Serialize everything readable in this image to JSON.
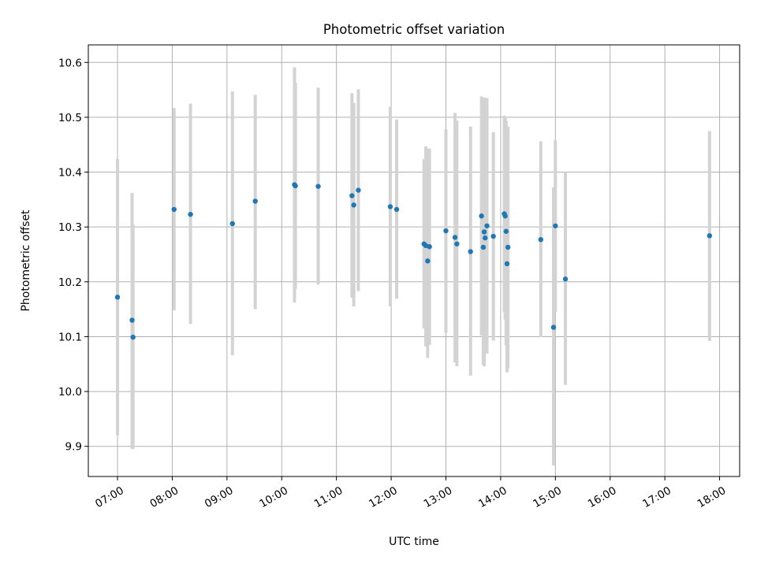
{
  "chart_data": {
    "type": "scatter",
    "title": "Photometric offset variation",
    "xlabel": "UTC time",
    "ylabel": "Photometric offset",
    "x_unit": "UTC time (HH:MM)",
    "xlim": [
      "06:28",
      "18:22"
    ],
    "ylim": [
      9.845,
      10.632
    ],
    "grid": true,
    "x_ticks": [
      "07:00",
      "08:00",
      "09:00",
      "10:00",
      "11:00",
      "12:00",
      "13:00",
      "14:00",
      "15:00",
      "16:00",
      "17:00",
      "18:00"
    ],
    "y_ticks": [
      9.9,
      10.0,
      10.1,
      10.2,
      10.3,
      10.4,
      10.5,
      10.6
    ],
    "y_tick_labels": [
      "9.9",
      "10.0",
      "10.1",
      "10.2",
      "10.3",
      "10.4",
      "10.5",
      "10.6"
    ],
    "point_color": "#1f77b4",
    "errorbar_color": "#d3d3d3",
    "points": [
      {
        "x": "07:00",
        "y": 10.172,
        "lo": 9.92,
        "hi": 10.424
      },
      {
        "x": "07:16",
        "y": 10.13,
        "lo": 9.895,
        "hi": 10.362
      },
      {
        "x": "07:17",
        "y": 10.099,
        "lo": 9.895,
        "hi": 10.305
      },
      {
        "x": "08:02",
        "y": 10.332,
        "lo": 10.148,
        "hi": 10.517
      },
      {
        "x": "08:20",
        "y": 10.323,
        "lo": 10.123,
        "hi": 10.525
      },
      {
        "x": "09:06",
        "y": 10.306,
        "lo": 10.066,
        "hi": 10.547
      },
      {
        "x": "09:31",
        "y": 10.347,
        "lo": 10.15,
        "hi": 10.541
      },
      {
        "x": "10:14",
        "y": 10.377,
        "lo": 10.162,
        "hi": 10.591
      },
      {
        "x": "10:15",
        "y": 10.375,
        "lo": 10.187,
        "hi": 10.563
      },
      {
        "x": "10:40",
        "y": 10.374,
        "lo": 10.195,
        "hi": 10.554
      },
      {
        "x": "11:17",
        "y": 10.357,
        "lo": 10.171,
        "hi": 10.544
      },
      {
        "x": "11:19",
        "y": 10.34,
        "lo": 10.155,
        "hi": 10.526
      },
      {
        "x": "11:24",
        "y": 10.367,
        "lo": 10.183,
        "hi": 10.551
      },
      {
        "x": "11:59",
        "y": 10.337,
        "lo": 10.155,
        "hi": 10.519
      },
      {
        "x": "12:06",
        "y": 10.332,
        "lo": 10.169,
        "hi": 10.496
      },
      {
        "x": "12:36",
        "y": 10.269,
        "lo": 10.115,
        "hi": 10.424
      },
      {
        "x": "12:38",
        "y": 10.266,
        "lo": 10.082,
        "hi": 10.447
      },
      {
        "x": "12:40",
        "y": 10.238,
        "lo": 10.061,
        "hi": 10.443
      },
      {
        "x": "12:42",
        "y": 10.264,
        "lo": 10.085,
        "hi": 10.443
      },
      {
        "x": "13:00",
        "y": 10.293,
        "lo": 10.107,
        "hi": 10.478
      },
      {
        "x": "13:10",
        "y": 10.281,
        "lo": 10.053,
        "hi": 10.508
      },
      {
        "x": "13:12",
        "y": 10.269,
        "lo": 10.046,
        "hi": 10.494
      },
      {
        "x": "13:27",
        "y": 10.255,
        "lo": 10.029,
        "hi": 10.483
      },
      {
        "x": "13:39",
        "y": 10.32,
        "lo": 10.102,
        "hi": 10.538
      },
      {
        "x": "13:41",
        "y": 10.263,
        "lo": 10.049,
        "hi": 10.513
      },
      {
        "x": "13:42",
        "y": 10.291,
        "lo": 10.046,
        "hi": 10.536
      },
      {
        "x": "13:43",
        "y": 10.28,
        "lo": 10.074,
        "hi": 10.498
      },
      {
        "x": "13:45",
        "y": 10.302,
        "lo": 10.069,
        "hi": 10.535
      },
      {
        "x": "13:52",
        "y": 10.283,
        "lo": 10.093,
        "hi": 10.473
      },
      {
        "x": "14:04",
        "y": 10.324,
        "lo": 10.145,
        "hi": 10.503
      },
      {
        "x": "14:05",
        "y": 10.32,
        "lo": 10.131,
        "hi": 10.5
      },
      {
        "x": "14:06",
        "y": 10.292,
        "lo": 10.084,
        "hi": 10.494
      },
      {
        "x": "14:07",
        "y": 10.233,
        "lo": 10.035,
        "hi": 10.481
      },
      {
        "x": "14:08",
        "y": 10.263,
        "lo": 10.043,
        "hi": 10.483
      },
      {
        "x": "14:44",
        "y": 10.277,
        "lo": 10.099,
        "hi": 10.456
      },
      {
        "x": "14:58",
        "y": 10.117,
        "lo": 9.865,
        "hi": 10.372
      },
      {
        "x": "15:00",
        "y": 10.302,
        "lo": 10.145,
        "hi": 10.458
      },
      {
        "x": "15:11",
        "y": 10.205,
        "lo": 10.012,
        "hi": 10.4
      },
      {
        "x": "17:49",
        "y": 10.284,
        "lo": 10.092,
        "hi": 10.475
      }
    ]
  }
}
